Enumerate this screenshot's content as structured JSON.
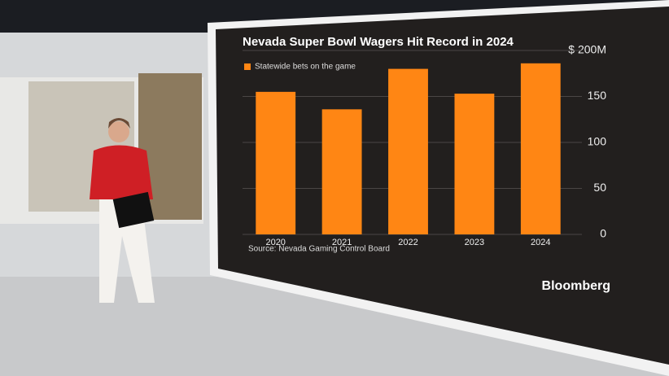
{
  "chart_data": {
    "type": "bar",
    "title": "Nevada Super Bowl Wagers Hit Record in 2024",
    "categories": [
      "2020",
      "2021",
      "2022",
      "2023",
      "2024"
    ],
    "series": [
      {
        "name": "Statewide bets on the game",
        "color": "#ff8614",
        "values": [
          155,
          136,
          180,
          153,
          186
        ]
      }
    ],
    "ylim": [
      0,
      200
    ],
    "yticks": [
      0,
      50,
      100,
      150,
      {
        "value": 200,
        "label": "$ 200M"
      }
    ],
    "grid": true,
    "source": "Source: Nevada Gaming Control Board",
    "brand": "Bloomberg"
  }
}
